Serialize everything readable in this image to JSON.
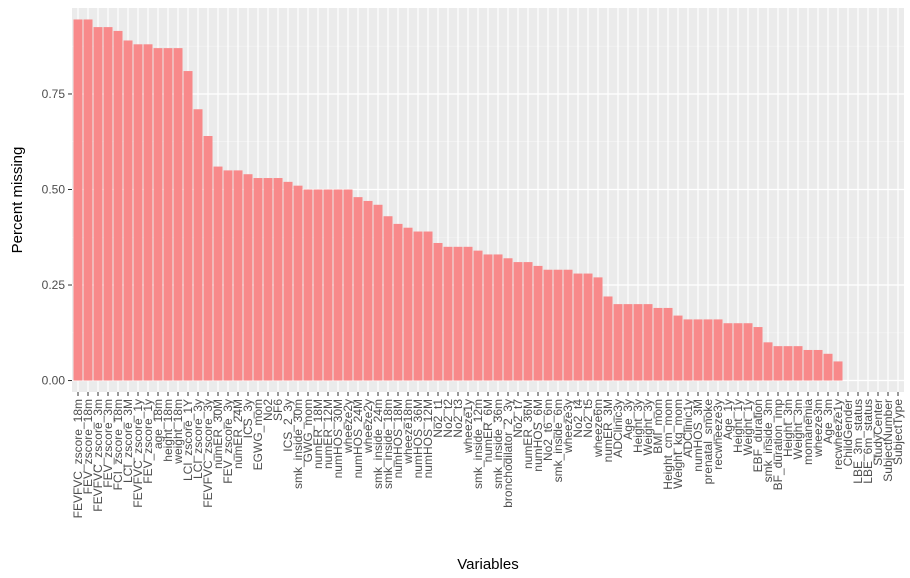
{
  "chart_data": {
    "type": "bar",
    "xlabel": "Variables",
    "ylabel": "Percent missing",
    "ylim": [
      -0.03,
      0.975
    ],
    "yticks": [
      0.0,
      0.25,
      0.5,
      0.75
    ],
    "ytick_labels": [
      "0.00",
      "0.25",
      "0.50",
      "0.75"
    ],
    "grid": true,
    "legend": "none",
    "categories": [
      "FEVFVC_zscore_18m",
      "FEV_zscore_18m",
      "FEVFVC_zscore_3m",
      "FEV_zscore_3m",
      "FCI_zscore_18m",
      "LCI_zscore_3M",
      "FEVFVC_zscore_1y",
      "FEV_zscore_1y",
      "age_18m",
      "height_18m",
      "weight_18m",
      "LCI_zscore_1Y",
      "LCI_zscore_3y",
      "FEVFVC_zscore_3y",
      "numER_30M",
      "FEV_zscore_3y",
      "numER_24M",
      "ICS_3y",
      "EGWG_mom",
      "No2",
      "SF6",
      "ICS_2_3y",
      "smk_inside_30m",
      "GWG_mom",
      "numER_18M",
      "numER_12M",
      "numHOS_30M",
      "wheeze2y",
      "numHOS_24M",
      "wheeze2y",
      "smk_inside_24m",
      "smk_inside_18m",
      "numHOS_18M",
      "wheeze18m",
      "numHOS_36M",
      "numHOS_12M",
      "No2_t1",
      "No2_t2",
      "No2_t3",
      "wheeze1y",
      "smk_inside_12m",
      "numER_6M",
      "smk_inside_36m",
      "bronchodilator_2_3y",
      "No2_t7",
      "numER_36M",
      "numHOS_6M",
      "No2_t6_6m",
      "smk_inside_6m",
      "wheeze3y",
      "No2_t4",
      "No2_t5",
      "wheeze6m",
      "numER_3M",
      "ADClinic3y",
      "Age_3y",
      "Height_3y",
      "Weight_3y",
      "BMI_mom",
      "Height_cm_mom",
      "Weight_kg_mom",
      "ADClinic1y",
      "numHOS_3M",
      "prenatal_smoke",
      "recwheeze3y",
      "Age_1y",
      "Height_1y",
      "Weight_1y",
      "EBF_duration",
      "smk_inside_3m",
      "BF_duration_imp",
      "Height_3m",
      "Weight_3m",
      "momanemia",
      "wheeze3m",
      "Age_3m",
      "recwheeze1y",
      "ChildGender",
      "LBE_3m_status",
      "LBE_6m_status",
      "StudyCenter",
      "SubjectNumber",
      "SubjectType"
    ],
    "values": [
      0.945,
      0.945,
      0.925,
      0.925,
      0.915,
      0.89,
      0.88,
      0.88,
      0.87,
      0.87,
      0.87,
      0.81,
      0.71,
      0.64,
      0.56,
      0.55,
      0.55,
      0.54,
      0.53,
      0.53,
      0.53,
      0.52,
      0.51,
      0.5,
      0.5,
      0.5,
      0.5,
      0.5,
      0.48,
      0.47,
      0.46,
      0.43,
      0.41,
      0.4,
      0.39,
      0.39,
      0.36,
      0.35,
      0.35,
      0.35,
      0.34,
      0.33,
      0.33,
      0.32,
      0.31,
      0.31,
      0.3,
      0.29,
      0.29,
      0.29,
      0.28,
      0.28,
      0.27,
      0.22,
      0.2,
      0.2,
      0.2,
      0.2,
      0.19,
      0.19,
      0.17,
      0.16,
      0.16,
      0.16,
      0.16,
      0.15,
      0.15,
      0.15,
      0.14,
      0.1,
      0.09,
      0.09,
      0.09,
      0.08,
      0.08,
      0.07,
      0.05,
      0.0,
      0.0,
      0.0,
      0.0,
      0.0,
      0.0
    ],
    "colors": {
      "bar": "#F8898A",
      "panel": "#EBEBEB",
      "grid_major": "#FFFFFF",
      "grid_minor": "#F5F5F5",
      "tick_text": "#4D4D4D",
      "title_text": "#000000",
      "tick_mark": "#333333"
    }
  }
}
